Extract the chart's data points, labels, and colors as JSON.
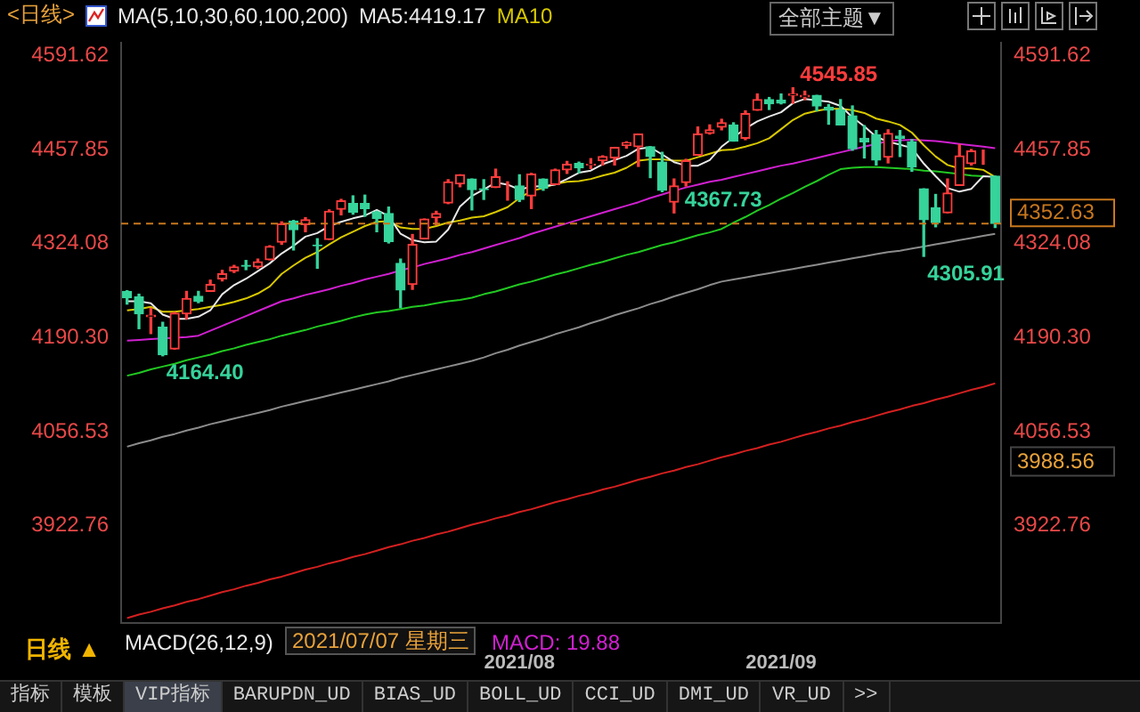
{
  "chart_data": {
    "type": "candlestick",
    "title": "<日线>",
    "subtitle": "MA(5,10,30,60,100,200)",
    "legend": "top",
    "categories": [
      null,
      null,
      null,
      null,
      null,
      null,
      null,
      null,
      null,
      null,
      null,
      null,
      null,
      null,
      null,
      null,
      null,
      null,
      null,
      null,
      null,
      null,
      null,
      null,
      null,
      null,
      null,
      null,
      null,
      null,
      null,
      null,
      null,
      "2021/08",
      null,
      null,
      null,
      null,
      null,
      null,
      null,
      null,
      null,
      null,
      null,
      null,
      null,
      null,
      null,
      null,
      null,
      null,
      null,
      null,
      null,
      "2021/09",
      null,
      null,
      null,
      null,
      null,
      null,
      null,
      null,
      null,
      null,
      null,
      null,
      null,
      null,
      null,
      null,
      null,
      null
    ],
    "ohlc": [
      [
        4256,
        4257,
        4238,
        4247
      ],
      [
        4248,
        4252,
        4203,
        4224
      ],
      [
        4220,
        4232,
        4196,
        4222
      ],
      [
        4205,
        4212,
        4164.4,
        4166
      ],
      [
        4174,
        4226,
        4174,
        4225
      ],
      [
        4224,
        4256,
        4217,
        4246
      ],
      [
        4249,
        4256,
        4240,
        4242
      ],
      [
        4256,
        4272,
        4256,
        4266
      ],
      [
        4274,
        4286,
        4271,
        4281
      ],
      [
        4285,
        4293,
        4283,
        4291
      ],
      [
        4293,
        4300,
        4287,
        4292
      ],
      [
        4291,
        4302,
        4289,
        4298
      ],
      [
        4301,
        4321,
        4301,
        4320
      ],
      [
        4326,
        4355,
        4323,
        4352
      ],
      [
        4356,
        4357,
        4315,
        4344
      ],
      [
        4351,
        4361,
        4341,
        4358
      ],
      [
        4322,
        4331,
        4289,
        4321
      ],
      [
        4330,
        4372,
        4330,
        4370
      ],
      [
        4373,
        4387,
        4365,
        4385
      ],
      [
        4381,
        4392,
        4366,
        4369
      ],
      [
        4381,
        4393,
        4363,
        4374
      ],
      [
        4369,
        4370,
        4341,
        4360
      ],
      [
        4367,
        4376,
        4325,
        4327
      ],
      [
        4296,
        4302,
        4233,
        4258
      ],
      [
        4266,
        4337,
        4259,
        4323
      ],
      [
        4331,
        4359,
        4331,
        4359
      ],
      [
        4361,
        4370,
        4351,
        4367
      ],
      [
        4382,
        4415,
        4381,
        4412
      ],
      [
        4409,
        4422,
        4405,
        4422
      ],
      [
        4416,
        4416,
        4372,
        4401
      ],
      [
        4402,
        4415,
        4387,
        4401
      ],
      [
        4404,
        4430,
        4404,
        4419
      ],
      [
        4395,
        4412,
        4386,
        4395
      ],
      [
        4406,
        4422,
        4384,
        4387
      ],
      [
        4392,
        4424,
        4374,
        4423
      ],
      [
        4416,
        4416,
        4400,
        4403
      ],
      [
        4408,
        4430,
        4408,
        4429
      ],
      [
        4429,
        4441,
        4424,
        4437
      ],
      [
        4438,
        4440,
        4425,
        4432
      ],
      [
        4436,
        4445,
        4431,
        4437
      ],
      [
        4442,
        4449,
        4436,
        4448
      ],
      [
        4446,
        4461,
        4436,
        4461
      ],
      [
        4464,
        4469,
        4460,
        4468
      ],
      [
        4462,
        4480,
        4434,
        4480
      ],
      [
        4462,
        4462,
        4418,
        4448
      ],
      [
        4440,
        4454,
        4398,
        4400
      ],
      [
        4383,
        4416,
        4367.73,
        4406
      ],
      [
        4411,
        4444,
        4406,
        4442
      ],
      [
        4450,
        4490,
        4450,
        4480
      ],
      [
        4481,
        4493,
        4480,
        4486
      ],
      [
        4490,
        4501,
        4486,
        4496
      ],
      [
        4493,
        4496,
        4470,
        4470
      ],
      [
        4474,
        4513,
        4472,
        4509
      ],
      [
        4514,
        4537,
        4514,
        4529
      ],
      [
        4529,
        4532,
        4515,
        4523
      ],
      [
        4528,
        4537,
        4523,
        4524
      ],
      [
        4535,
        4545.85,
        4524,
        4537
      ],
      [
        4533,
        4541,
        4529,
        4535
      ],
      [
        4535,
        4535,
        4513,
        4520
      ],
      [
        4518,
        4522,
        4494,
        4514
      ],
      [
        4514,
        4529,
        4493,
        4493
      ],
      [
        4506,
        4520,
        4457,
        4459
      ],
      [
        4474,
        4492,
        4446,
        4469
      ],
      [
        4479,
        4485,
        4436,
        4443
      ],
      [
        4447,
        4486,
        4439,
        4481
      ],
      [
        4477,
        4485,
        4448,
        4474
      ],
      [
        4469,
        4472,
        4427,
        4433
      ],
      [
        4402,
        4402,
        4305.91,
        4358
      ],
      [
        4375,
        4394,
        4348,
        4354
      ],
      [
        4368,
        4416,
        4368,
        4396
      ],
      [
        4407,
        4465,
        4407,
        4449
      ],
      [
        4438,
        4458,
        4436,
        4456
      ],
      [
        4443,
        4457,
        4437,
        4443
      ],
      [
        4420,
        4420,
        4347,
        4352.63
      ]
    ],
    "series": [
      {
        "type": "line",
        "name": "MA5:4419.17",
        "color": "#e8e8e8",
        "values": [
          4242,
          4242,
          4239,
          4223,
          4217,
          4217,
          4220,
          4229,
          4252,
          4265,
          4274,
          4285,
          4296,
          4310,
          4321,
          4334,
          4339,
          4349,
          4355,
          4360,
          4364,
          4372,
          4363,
          4338,
          4329,
          4326,
          4327,
          4344,
          4377,
          4392,
          4401,
          4411,
          4408,
          4401,
          4405,
          4406,
          4408,
          4416,
          4425,
          4428,
          4437,
          4443,
          4449,
          4459,
          4461,
          4451,
          4440,
          4435,
          4435,
          4443,
          4462,
          4475,
          4488,
          4498,
          4505,
          4511,
          4524,
          4530,
          4528,
          4526,
          4520,
          4504,
          4491,
          4476,
          4469,
          4465,
          4460,
          4438,
          4420,
          4403,
          4398,
          4402,
          4420,
          4419
        ]
      },
      {
        "type": "line",
        "name": "MA10",
        "color": "#d8c800",
        "values": [
          4229,
          4231,
          4234,
          4227,
          4227,
          4229,
          4231,
          4234,
          4237,
          4241,
          4246,
          4253,
          4263,
          4281,
          4293,
          4304,
          4312,
          4323,
          4333,
          4341,
          4349,
          4355,
          4356,
          4347,
          4345,
          4345,
          4349,
          4354,
          4357,
          4361,
          4363,
          4369,
          4376,
          4389,
          4399,
          4403,
          4409,
          4412,
          4413,
          4416,
          4421,
          4425,
          4432,
          4442,
          4444,
          4444,
          4442,
          4442,
          4447,
          4452,
          4457,
          4458,
          4462,
          4467,
          4474,
          4487,
          4500,
          4509,
          4513,
          4516,
          4516,
          4514,
          4510,
          4502,
          4498,
          4493,
          4482,
          4464,
          4448,
          4436,
          4431,
          4431,
          4429,
          4419
        ]
      },
      {
        "type": "line",
        "color": "#d020d0",
        "values": [
          4186,
          4187,
          4188,
          4189,
          4190,
          4191,
          4193,
          4200,
          4207,
          4214,
          4221,
          4228,
          4235,
          4242,
          4246,
          4251,
          4255,
          4259,
          4264,
          4268,
          4273,
          4277,
          4281,
          4286,
          4290,
          4295,
          4299,
          4303,
          4308,
          4312,
          4317,
          4322,
          4327,
          4332,
          4338,
          4343,
          4348,
          4353,
          4358,
          4363,
          4368,
          4373,
          4378,
          4383,
          4389,
          4394,
          4399,
          4404,
          4408,
          4412,
          4415,
          4419,
          4423,
          4427,
          4431,
          4435,
          4438,
          4442,
          4446,
          4450,
          4454,
          4458,
          4462,
          4466,
          4470,
          4471,
          4472,
          4471,
          4470,
          4468,
          4466,
          4464,
          4462,
          4460
        ]
      },
      {
        "type": "line",
        "color": "#22c822",
        "values": [
          4136,
          4140,
          4145,
          4149,
          4153,
          4158,
          4162,
          4166,
          4171,
          4175,
          4180,
          4184,
          4188,
          4193,
          4197,
          4201,
          4206,
          4210,
          4214,
          4219,
          4223,
          4226,
          4228,
          4231,
          4234,
          4236,
          4239,
          4242,
          4244,
          4247,
          4252,
          4256,
          4261,
          4266,
          4270,
          4275,
          4280,
          4284,
          4289,
          4294,
          4298,
          4303,
          4308,
          4312,
          4317,
          4322,
          4326,
          4331,
          4336,
          4340,
          4345,
          4354,
          4362,
          4371,
          4379,
          4388,
          4396,
          4405,
          4413,
          4422,
          4430,
          4432,
          4433,
          4433,
          4432,
          4431,
          4430,
          4428,
          4427,
          4425,
          4423,
          4421,
          4420,
          null
        ]
      },
      {
        "type": "line",
        "color": "#8c8c8c",
        "values": [
          4035,
          4040,
          4044,
          4049,
          4053,
          4058,
          4062,
          4067,
          4071,
          4075,
          4079,
          4083,
          4087,
          4092,
          4096,
          4100,
          4104,
          4108,
          4112,
          4116,
          4120,
          4124,
          4128,
          4133,
          4137,
          4141,
          4145,
          4149,
          4153,
          4157,
          4162,
          4168,
          4173,
          4179,
          4184,
          4189,
          4195,
          4200,
          4205,
          4211,
          4216,
          4222,
          4227,
          4232,
          4238,
          4243,
          4249,
          4254,
          4259,
          4265,
          4270,
          4273,
          4276,
          4279,
          4282,
          4285,
          4288,
          4291,
          4294,
          4297,
          4300,
          4303,
          4306,
          4309,
          4312,
          4314,
          4317,
          4320,
          4323,
          4326,
          4329,
          4332,
          4335,
          4338
        ]
      },
      {
        "type": "line",
        "color": "#d42020",
        "values": [
          3791,
          3796,
          3800,
          3805,
          3809,
          3814,
          3818,
          3823,
          3828,
          3832,
          3837,
          3841,
          3846,
          3850,
          3855,
          3860,
          3864,
          3869,
          3873,
          3878,
          3882,
          3887,
          3892,
          3896,
          3901,
          3905,
          3910,
          3914,
          3919,
          3924,
          3928,
          3933,
          3937,
          3942,
          3946,
          3951,
          3956,
          3960,
          3965,
          3969,
          3974,
          3978,
          3983,
          3988,
          3992,
          3997,
          4001,
          4006,
          4010,
          4015,
          4020,
          4024,
          4029,
          4033,
          4038,
          4042,
          4047,
          4052,
          4056,
          4061,
          4065,
          4070,
          4074,
          4079,
          4084,
          4088,
          4093,
          4097,
          4102,
          4106,
          4111,
          4116,
          4120,
          4125
        ]
      }
    ],
    "ylim": [
      3784,
      4610
    ],
    "yticks": [
      4591.62,
      4457.85,
      4324.08,
      {
        "value": 4190.3,
        "label": "4190.30"
      },
      4056.53,
      3922.76
    ],
    "y2lim": [
      3784,
      4610
    ],
    "y2ticks": [
      4591.62,
      4457.85,
      4324.08,
      {
        "value": 4190.3,
        "label": "4190.30"
      },
      4056.53,
      3922.76
    ],
    "ref_lines": [
      {
        "axis": "y",
        "value": 4352.63,
        "label": "4352.63",
        "color": "#c8781e",
        "line_style": "dashed"
      }
    ],
    "annotations": [
      "全部主题▼",
      "日线 ▲",
      "MACD(26,12,9)",
      "2021/07/07 星期三",
      "MACD: 19.88",
      "指标",
      "模板",
      "VIP指标",
      "BARUPDN_UD",
      "BIAS_UD",
      "BOLL_UD",
      "CCI_UD",
      "DMI_UD",
      "VR_UD",
      ">>",
      "4545.85",
      "4164.40",
      "4367.73",
      "4305.91",
      "3988.56"
    ]
  }
}
